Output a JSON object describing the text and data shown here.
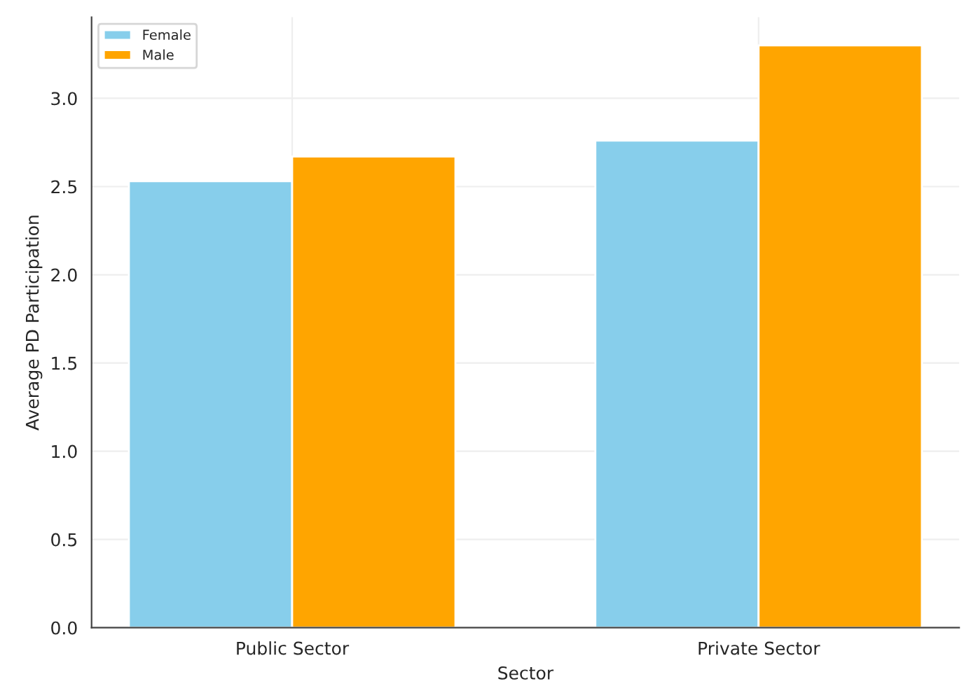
{
  "chart_data": {
    "type": "bar",
    "xlabel": "Sector",
    "ylabel": "Average PD Participation",
    "categories": [
      "Public Sector",
      "Private Sector"
    ],
    "series": [
      {
        "name": "Female",
        "color": "#87ceeb",
        "values": [
          2.53,
          2.76
        ]
      },
      {
        "name": "Male",
        "color": "#ffa500",
        "values": [
          2.67,
          3.3
        ]
      }
    ],
    "ylim": [
      0,
      3.46
    ],
    "yticks": [
      {
        "value": 0,
        "label": "0.0"
      },
      {
        "value": 0.5,
        "label": "0.5"
      },
      {
        "value": 1,
        "label": "1.0"
      },
      {
        "value": 1.5,
        "label": "1.5"
      },
      {
        "value": 2,
        "label": "2.0"
      },
      {
        "value": 2.5,
        "label": "2.5"
      },
      {
        "value": 3,
        "label": "3.0"
      }
    ],
    "grid": true,
    "legend": "top left"
  }
}
